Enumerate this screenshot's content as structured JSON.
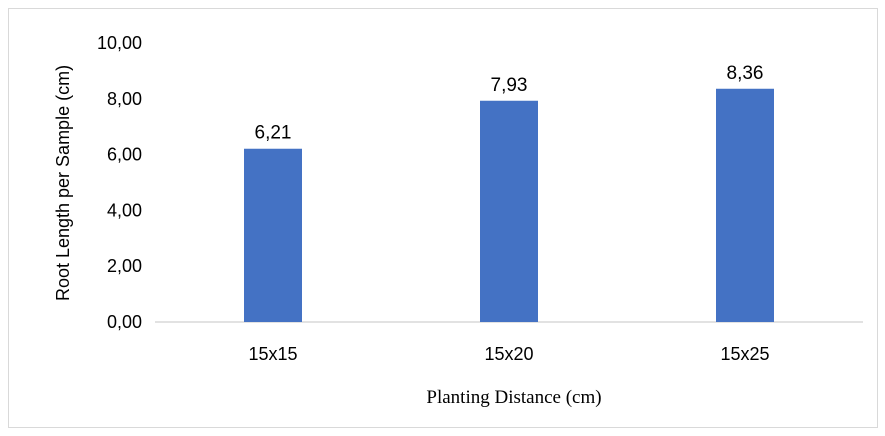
{
  "chart_data": {
    "type": "bar",
    "categories": [
      "15x15",
      "15x20",
      "15x25"
    ],
    "values": [
      6.21,
      7.93,
      8.36
    ],
    "data_labels": [
      "6,21",
      "7,93",
      "8,36"
    ],
    "title": "",
    "xlabel": "Planting Distance (cm)",
    "ylabel": "Root Length per Sample (cm)",
    "ylim": [
      0,
      10
    ],
    "yticks": [
      0,
      2,
      4,
      6,
      8,
      10
    ],
    "ytick_labels": [
      "0,00",
      "2,00",
      "4,00",
      "6,00",
      "8,00",
      "10,00"
    ],
    "grid": false,
    "legend": "none",
    "bar_color": "#4472c4"
  }
}
